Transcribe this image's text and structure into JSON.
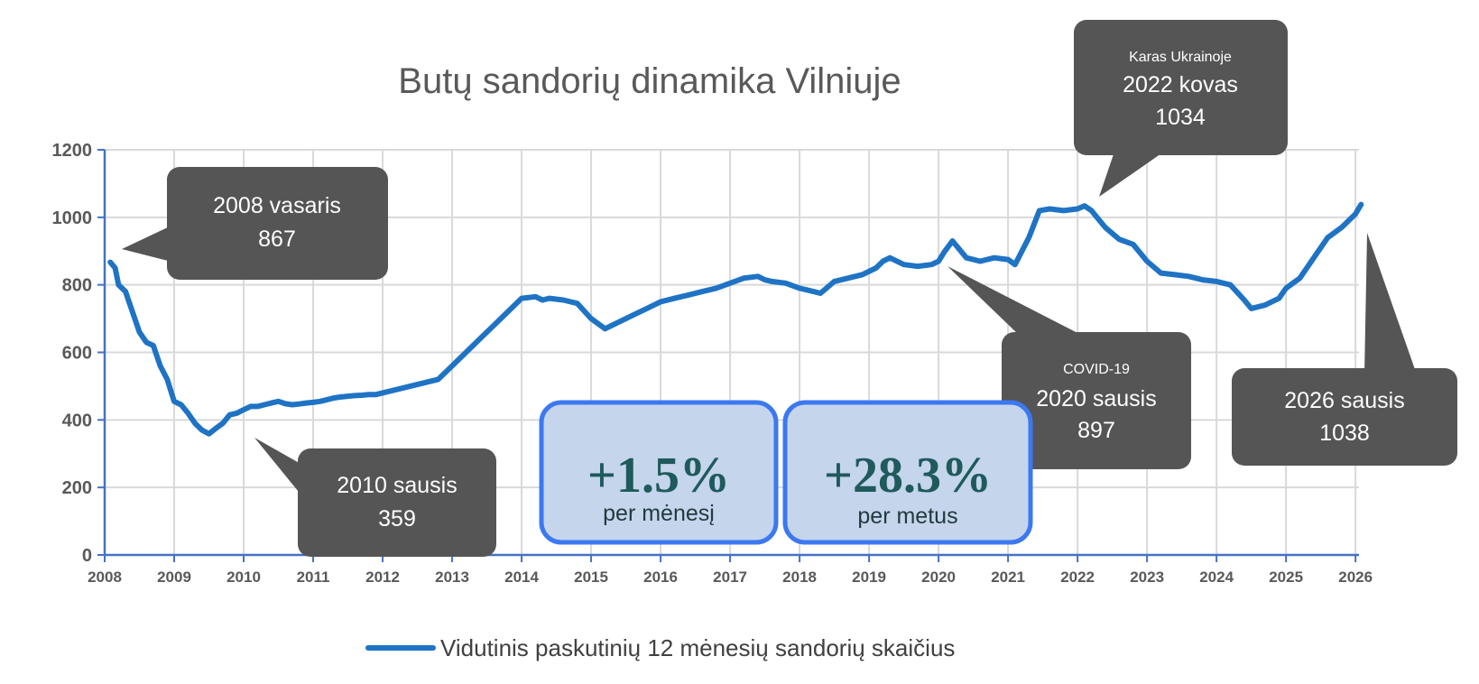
{
  "chart_data": {
    "type": "line",
    "title": "Butų sandorių dinamika Vilniuje",
    "xlabel": "",
    "ylabel": "",
    "xlim": [
      2008.0,
      2026.05
    ],
    "ylim": [
      0,
      1200
    ],
    "y_ticks": [
      "0",
      "200",
      "400",
      "600",
      "800",
      "1000",
      "1200"
    ],
    "x_ticks": [
      "2008",
      "2009",
      "2010",
      "2011",
      "2012",
      "2013",
      "2014",
      "2015",
      "2016",
      "2017",
      "2018",
      "2019",
      "2020",
      "2021",
      "2022",
      "2023",
      "2024",
      "2025",
      "2026"
    ],
    "grid": true,
    "legend_position": "bottom",
    "series": [
      {
        "name": "Vidutinis paskutinių 12 mėnesių sandorių skaičius",
        "color": "#1f73c4",
        "x": [
          2008.08,
          2008.15,
          2008.2,
          2008.3,
          2008.4,
          2008.5,
          2008.6,
          2008.7,
          2008.8,
          2008.9,
          2009.0,
          2009.1,
          2009.2,
          2009.3,
          2009.4,
          2009.5,
          2009.6,
          2009.7,
          2009.8,
          2009.9,
          2010.0,
          2010.1,
          2010.2,
          2010.3,
          2010.4,
          2010.5,
          2010.6,
          2010.7,
          2010.8,
          2010.9,
          2011.0,
          2011.1,
          2011.2,
          2011.3,
          2011.4,
          2011.5,
          2011.6,
          2011.7,
          2011.8,
          2011.9,
          2012.0,
          2012.2,
          2012.4,
          2012.6,
          2012.8,
          2013.0,
          2013.2,
          2013.4,
          2013.6,
          2013.8,
          2014.0,
          2014.2,
          2014.3,
          2014.4,
          2014.6,
          2014.8,
          2015.0,
          2015.2,
          2015.4,
          2015.6,
          2015.8,
          2016.0,
          2016.2,
          2016.4,
          2016.6,
          2016.8,
          2017.0,
          2017.2,
          2017.4,
          2017.5,
          2017.6,
          2017.8,
          2018.0,
          2018.2,
          2018.3,
          2018.5,
          2018.7,
          2018.9,
          2019.1,
          2019.2,
          2019.3,
          2019.5,
          2019.7,
          2019.9,
          2020.0,
          2020.08,
          2020.2,
          2020.4,
          2020.6,
          2020.8,
          2021.0,
          2021.1,
          2021.3,
          2021.45,
          2021.6,
          2021.8,
          2022.0,
          2022.1,
          2022.2,
          2022.4,
          2022.6,
          2022.8,
          2023.0,
          2023.2,
          2023.4,
          2023.6,
          2023.8,
          2024.0,
          2024.2,
          2024.4,
          2024.5,
          2024.7,
          2024.9,
          2025.0,
          2025.2,
          2025.4,
          2025.6,
          2025.8,
          2025.9,
          2026.0,
          2026.08
        ],
        "values": [
          867,
          850,
          800,
          780,
          720,
          660,
          630,
          620,
          560,
          520,
          455,
          445,
          420,
          390,
          370,
          359,
          375,
          390,
          415,
          420,
          430,
          440,
          440,
          445,
          450,
          455,
          448,
          445,
          447,
          450,
          452,
          455,
          460,
          465,
          468,
          470,
          472,
          473,
          475,
          475,
          480,
          490,
          500,
          510,
          520,
          560,
          600,
          640,
          680,
          720,
          760,
          765,
          755,
          760,
          755,
          745,
          700,
          670,
          690,
          710,
          730,
          750,
          760,
          770,
          780,
          790,
          805,
          820,
          825,
          815,
          810,
          805,
          790,
          780,
          775,
          810,
          820,
          830,
          850,
          870,
          880,
          860,
          855,
          860,
          870,
          897,
          930,
          880,
          870,
          880,
          875,
          860,
          940,
          1020,
          1025,
          1020,
          1025,
          1034,
          1020,
          970,
          935,
          920,
          870,
          835,
          830,
          825,
          815,
          810,
          800,
          755,
          730,
          740,
          760,
          790,
          820,
          880,
          940,
          970,
          990,
          1010,
          1038
        ]
      }
    ]
  },
  "callouts": {
    "c2008": {
      "line1": "2008 vasaris",
      "line2": "867"
    },
    "c2010": {
      "line1": "2010 sausis",
      "line2": "359"
    },
    "c2020": {
      "label": "COVID-19",
      "line1": "2020 sausis",
      "line2": "897"
    },
    "c2022": {
      "label": "Karas Ukrainoje",
      "line1": "2022 kovas",
      "line2": "1034"
    },
    "c2026": {
      "line1": "2026 sausis",
      "line2": "1038"
    }
  },
  "stats": {
    "monthly": {
      "value": "+1.5%",
      "label": "per mėnesį"
    },
    "yearly": {
      "value": "+28.3%",
      "label": "per metus"
    }
  },
  "colors": {
    "line": "#1f73c4",
    "callout": "#555555",
    "stat_box_fill": "#c5d5ec",
    "stat_box_border": "#3c78f0",
    "grid": "#d9d9d9",
    "axis": "#4472c4"
  }
}
